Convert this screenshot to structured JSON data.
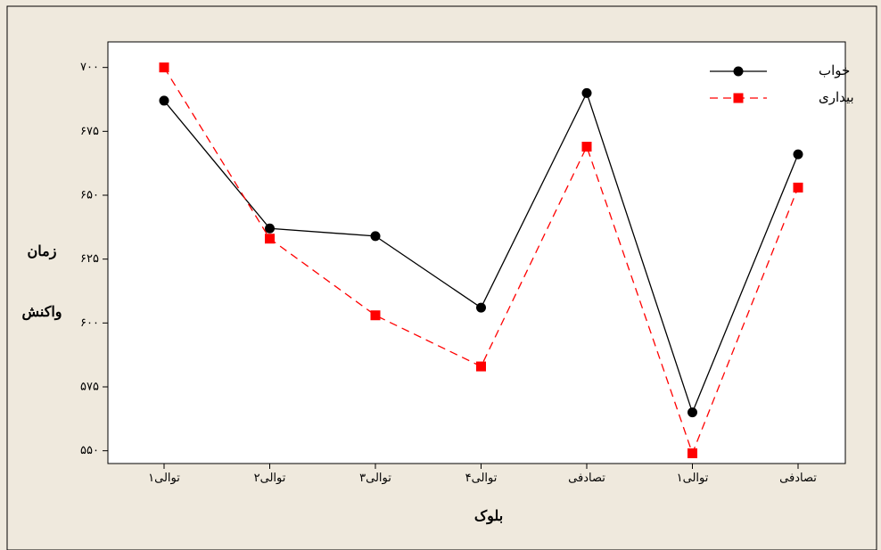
{
  "chart_data": {
    "type": "line",
    "title": "",
    "xlabel": "بلوک",
    "ylabel_lines": [
      "زمان",
      "واکنش"
    ],
    "categories": [
      "توالی۱",
      "توالی۲",
      "توالی۳",
      "توالی۴",
      "تصادفی",
      "توالی۱",
      "تصادفی"
    ],
    "ylim": [
      545,
      710
    ],
    "yticks": [
      550,
      575,
      600,
      625,
      650,
      675,
      700
    ],
    "ytick_labels": [
      "۵۵۰",
      "۵۷۵",
      "۶۰۰",
      "۶۲۵",
      "۶۵۰",
      "۶۷۵",
      "۷۰۰"
    ],
    "grid": false,
    "legend_position": "top-right",
    "series": [
      {
        "name": "خواب",
        "color": "#000000",
        "line_style": "solid",
        "marker": "circle",
        "values": [
          687,
          637,
          634,
          606,
          690,
          565,
          666
        ]
      },
      {
        "name": "بیداری",
        "color": "#ff0000",
        "line_style": "dashed",
        "marker": "square",
        "values": [
          700,
          633,
          603,
          583,
          669,
          549,
          653
        ]
      }
    ]
  }
}
